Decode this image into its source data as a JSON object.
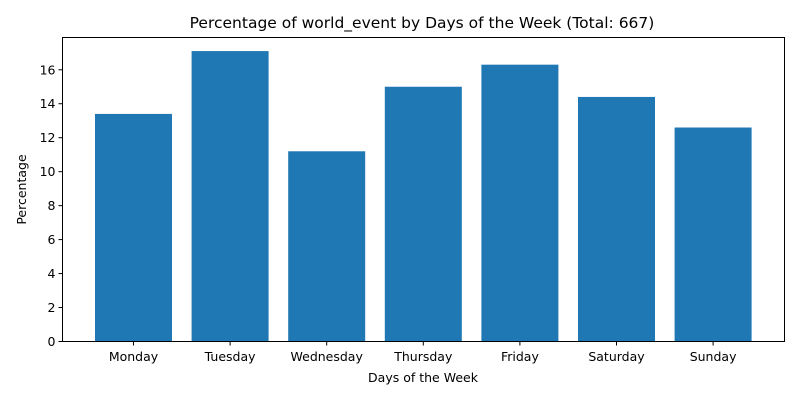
{
  "chart_data": {
    "type": "bar",
    "title": "Percentage of world_event by Days of the Week (Total: 667)",
    "xlabel": "Days of the Week",
    "ylabel": "Percentage",
    "categories": [
      "Monday",
      "Tuesday",
      "Wednesday",
      "Thursday",
      "Friday",
      "Saturday",
      "Sunday"
    ],
    "values": [
      13.4,
      17.1,
      11.2,
      15.0,
      16.3,
      14.4,
      12.6
    ],
    "yticks": [
      0,
      2,
      4,
      6,
      8,
      10,
      12,
      14,
      16
    ],
    "ylim": [
      0,
      17.9
    ],
    "bar_color": "#1f77b4",
    "grid": false,
    "legend": false
  }
}
